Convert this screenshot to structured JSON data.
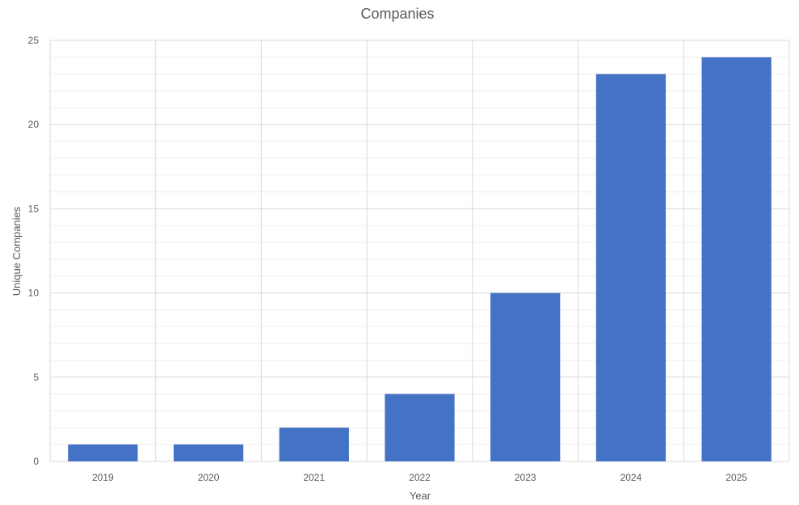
{
  "chart_data": {
    "type": "bar",
    "title": "Companies",
    "xlabel": "Year",
    "ylabel": "Unique Companies",
    "categories": [
      "2019",
      "2020",
      "2021",
      "2022",
      "2023",
      "2024",
      "2025"
    ],
    "values": [
      1,
      1,
      2,
      4,
      10,
      23,
      24
    ],
    "ylim": [
      0,
      25
    ],
    "yticks": [
      0,
      5,
      10,
      15,
      20,
      25
    ],
    "grid": true,
    "legend": "none",
    "colors": {
      "bar": "#4472C4",
      "major_grid": "#D9D9D9",
      "minor_grid": "#EDEDED",
      "text": "#595959"
    }
  }
}
